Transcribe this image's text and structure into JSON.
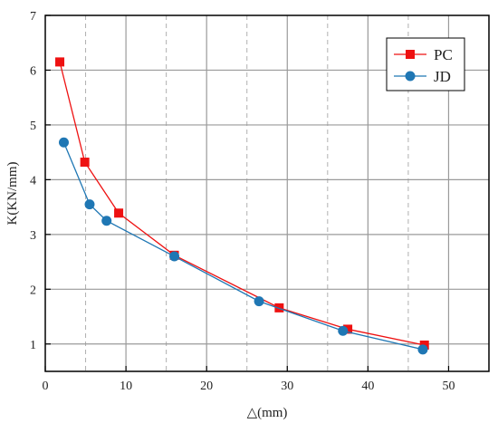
{
  "chart_data": {
    "type": "line",
    "xlabel": "△(mm)",
    "ylabel": "K(KN/mm)",
    "xlim": [
      0,
      55
    ],
    "ylim": [
      0.5,
      7
    ],
    "x_ticks": [
      0,
      10,
      20,
      30,
      40,
      50
    ],
    "y_ticks": [
      1,
      2,
      3,
      4,
      5,
      6,
      7
    ],
    "grid": true,
    "legend_position": "top-right",
    "series": [
      {
        "name": "PC",
        "color": "#ee1111",
        "marker": "square",
        "points": [
          {
            "x": 1.8,
            "y": 6.15
          },
          {
            "x": 4.9,
            "y": 4.32
          },
          {
            "x": 9.1,
            "y": 3.39
          },
          {
            "x": 16.0,
            "y": 2.62
          },
          {
            "x": 29.0,
            "y": 1.66
          },
          {
            "x": 37.5,
            "y": 1.27
          },
          {
            "x": 47.0,
            "y": 0.98
          }
        ]
      },
      {
        "name": "JD",
        "color": "#1f77b4",
        "marker": "circle",
        "points": [
          {
            "x": 2.3,
            "y": 4.68
          },
          {
            "x": 5.5,
            "y": 3.55
          },
          {
            "x": 7.6,
            "y": 3.25
          },
          {
            "x": 16.0,
            "y": 2.6
          },
          {
            "x": 26.5,
            "y": 1.78
          },
          {
            "x": 36.9,
            "y": 1.24
          },
          {
            "x": 46.8,
            "y": 0.9
          }
        ]
      }
    ]
  }
}
